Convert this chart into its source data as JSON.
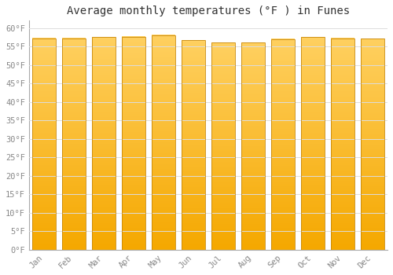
{
  "title": "Average monthly temperatures (°F ) in Funes",
  "months": [
    "Jan",
    "Feb",
    "Mar",
    "Apr",
    "May",
    "Jun",
    "Jul",
    "Aug",
    "Sep",
    "Oct",
    "Nov",
    "Dec"
  ],
  "values": [
    57.2,
    57.2,
    57.6,
    57.7,
    58.1,
    56.7,
    56.1,
    56.1,
    57.0,
    57.5,
    57.2,
    57.1
  ],
  "bar_color_top": "#FFD060",
  "bar_color_bottom": "#F5A800",
  "bar_edge_color": "#C8880A",
  "background_color": "#FFFFFF",
  "plot_bg_color": "#FFFFFF",
  "grid_color": "#DDDDDD",
  "ylim": [
    0,
    62
  ],
  "yticks": [
    0,
    5,
    10,
    15,
    20,
    25,
    30,
    35,
    40,
    45,
    50,
    55,
    60
  ],
  "title_fontsize": 10,
  "tick_fontsize": 7.5,
  "tick_color": "#888888"
}
